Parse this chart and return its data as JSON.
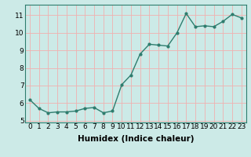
{
  "x": [
    0,
    1,
    2,
    3,
    4,
    5,
    6,
    7,
    8,
    9,
    10,
    11,
    12,
    13,
    14,
    15,
    16,
    17,
    18,
    19,
    20,
    21,
    22,
    23
  ],
  "y": [
    6.2,
    5.7,
    5.45,
    5.5,
    5.5,
    5.55,
    5.7,
    5.75,
    5.45,
    5.55,
    7.05,
    7.6,
    8.8,
    9.35,
    9.3,
    9.25,
    10.0,
    11.1,
    10.35,
    10.4,
    10.35,
    10.65,
    11.05,
    10.85
  ],
  "line_color": "#2e7d6e",
  "marker": "o",
  "marker_size": 2.0,
  "linewidth": 1.0,
  "xlabel": "Humidex (Indice chaleur)",
  "xlim": [
    -0.5,
    23.5
  ],
  "ylim": [
    4.9,
    11.6
  ],
  "yticks": [
    5,
    6,
    7,
    8,
    9,
    10,
    11
  ],
  "xticks": [
    0,
    1,
    2,
    3,
    4,
    5,
    6,
    7,
    8,
    9,
    10,
    11,
    12,
    13,
    14,
    15,
    16,
    17,
    18,
    19,
    20,
    21,
    22,
    23
  ],
  "xtick_labels": [
    "0",
    "1",
    "2",
    "3",
    "4",
    "5",
    "6",
    "7",
    "8",
    "9",
    "10",
    "11",
    "12",
    "13",
    "14",
    "15",
    "16",
    "17",
    "18",
    "19",
    "20",
    "21",
    "22",
    "23"
  ],
  "bg_color": "#cceae7",
  "grid_color": "#f0b0b0",
  "tick_fontsize": 6.5,
  "xlabel_fontsize": 7.5
}
